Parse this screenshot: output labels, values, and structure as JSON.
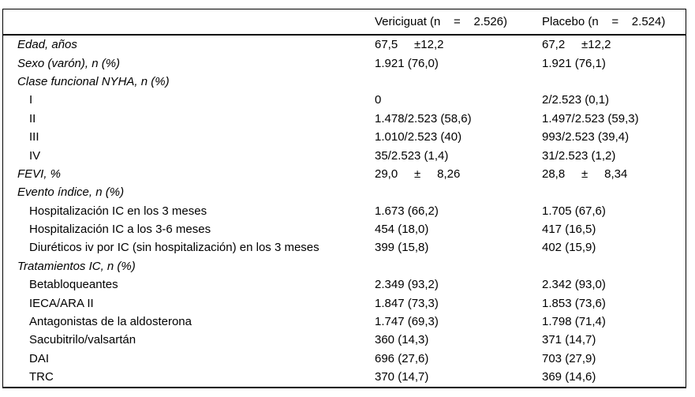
{
  "table": {
    "columns": {
      "label_header": "",
      "col1_header": "Vericiguat (n    =    2.526)",
      "col2_header": "Placebo (n    =    2.524)"
    },
    "rows": [
      {
        "label": "Edad, años",
        "em": true,
        "level": 0,
        "v1": "67,5     ±12,2",
        "v2": "67,2     ±12,2"
      },
      {
        "label": "Sexo (varón), n (%)",
        "em": true,
        "level": 0,
        "v1": "1.921 (76,0)",
        "v2": "1.921 (76,1)"
      },
      {
        "label": "Clase funcional NYHA, n (%)",
        "em": true,
        "level": 0,
        "v1": "",
        "v2": ""
      },
      {
        "label": "I",
        "em": false,
        "level": 1,
        "v1": "0",
        "v2": "2/2.523 (0,1)"
      },
      {
        "label": "II",
        "em": false,
        "level": 1,
        "v1": "1.478/2.523 (58,6)",
        "v2": "1.497/2.523 (59,3)"
      },
      {
        "label": "III",
        "em": false,
        "level": 1,
        "v1": "1.010/2.523 (40)",
        "v2": "993/2.523 (39,4)"
      },
      {
        "label": "IV",
        "em": false,
        "level": 1,
        "v1": "35/2.523 (1,4)",
        "v2": "31/2.523 (1,2)"
      },
      {
        "label": "FEVI, %",
        "em": true,
        "level": 0,
        "v1": "29,0     ±     8,26",
        "v2": "28,8     ±     8,34"
      },
      {
        "label": "Evento índice, n (%)",
        "em": true,
        "level": 0,
        "v1": "",
        "v2": ""
      },
      {
        "label": "Hospitalización IC en los 3 meses",
        "em": false,
        "level": 1,
        "v1": "1.673 (66,2)",
        "v2": "1.705 (67,6)"
      },
      {
        "label": "Hospitalización IC a los 3-6 meses",
        "em": false,
        "level": 1,
        "v1": "454 (18,0)",
        "v2": "417 (16,5)"
      },
      {
        "label": "Diuréticos iv por IC (sin hospitalización) en los 3 meses",
        "em": false,
        "level": 1,
        "v1": "399 (15,8)",
        "v2": "402 (15,9)"
      },
      {
        "label": "Tratamientos IC, n (%)",
        "em": true,
        "level": 0,
        "v1": "",
        "v2": ""
      },
      {
        "label": "Betabloqueantes",
        "em": false,
        "level": 1,
        "v1": "2.349 (93,2)",
        "v2": "2.342 (93,0)"
      },
      {
        "label": "IECA/ARA II",
        "em": false,
        "level": 1,
        "v1": "1.847 (73,3)",
        "v2": "1.853 (73,6)"
      },
      {
        "label": "Antagonistas de la aldosterona",
        "em": false,
        "level": 1,
        "v1": "1.747 (69,3)",
        "v2": "1.798 (71,4)"
      },
      {
        "label": "Sacubitrilo/valsartán",
        "em": false,
        "level": 1,
        "v1": "360 (14,3)",
        "v2": "371 (14,7)"
      },
      {
        "label": "DAI",
        "em": false,
        "level": 1,
        "v1": "696 (27,6)",
        "v2": "703 (27,9)"
      },
      {
        "label": "TRC",
        "em": false,
        "level": 1,
        "v1": "370 (14,7)",
        "v2": "369 (14,6)"
      }
    ],
    "style": {
      "text_color": "#000000",
      "rule_color": "#000000",
      "background": "#ffffff"
    }
  }
}
